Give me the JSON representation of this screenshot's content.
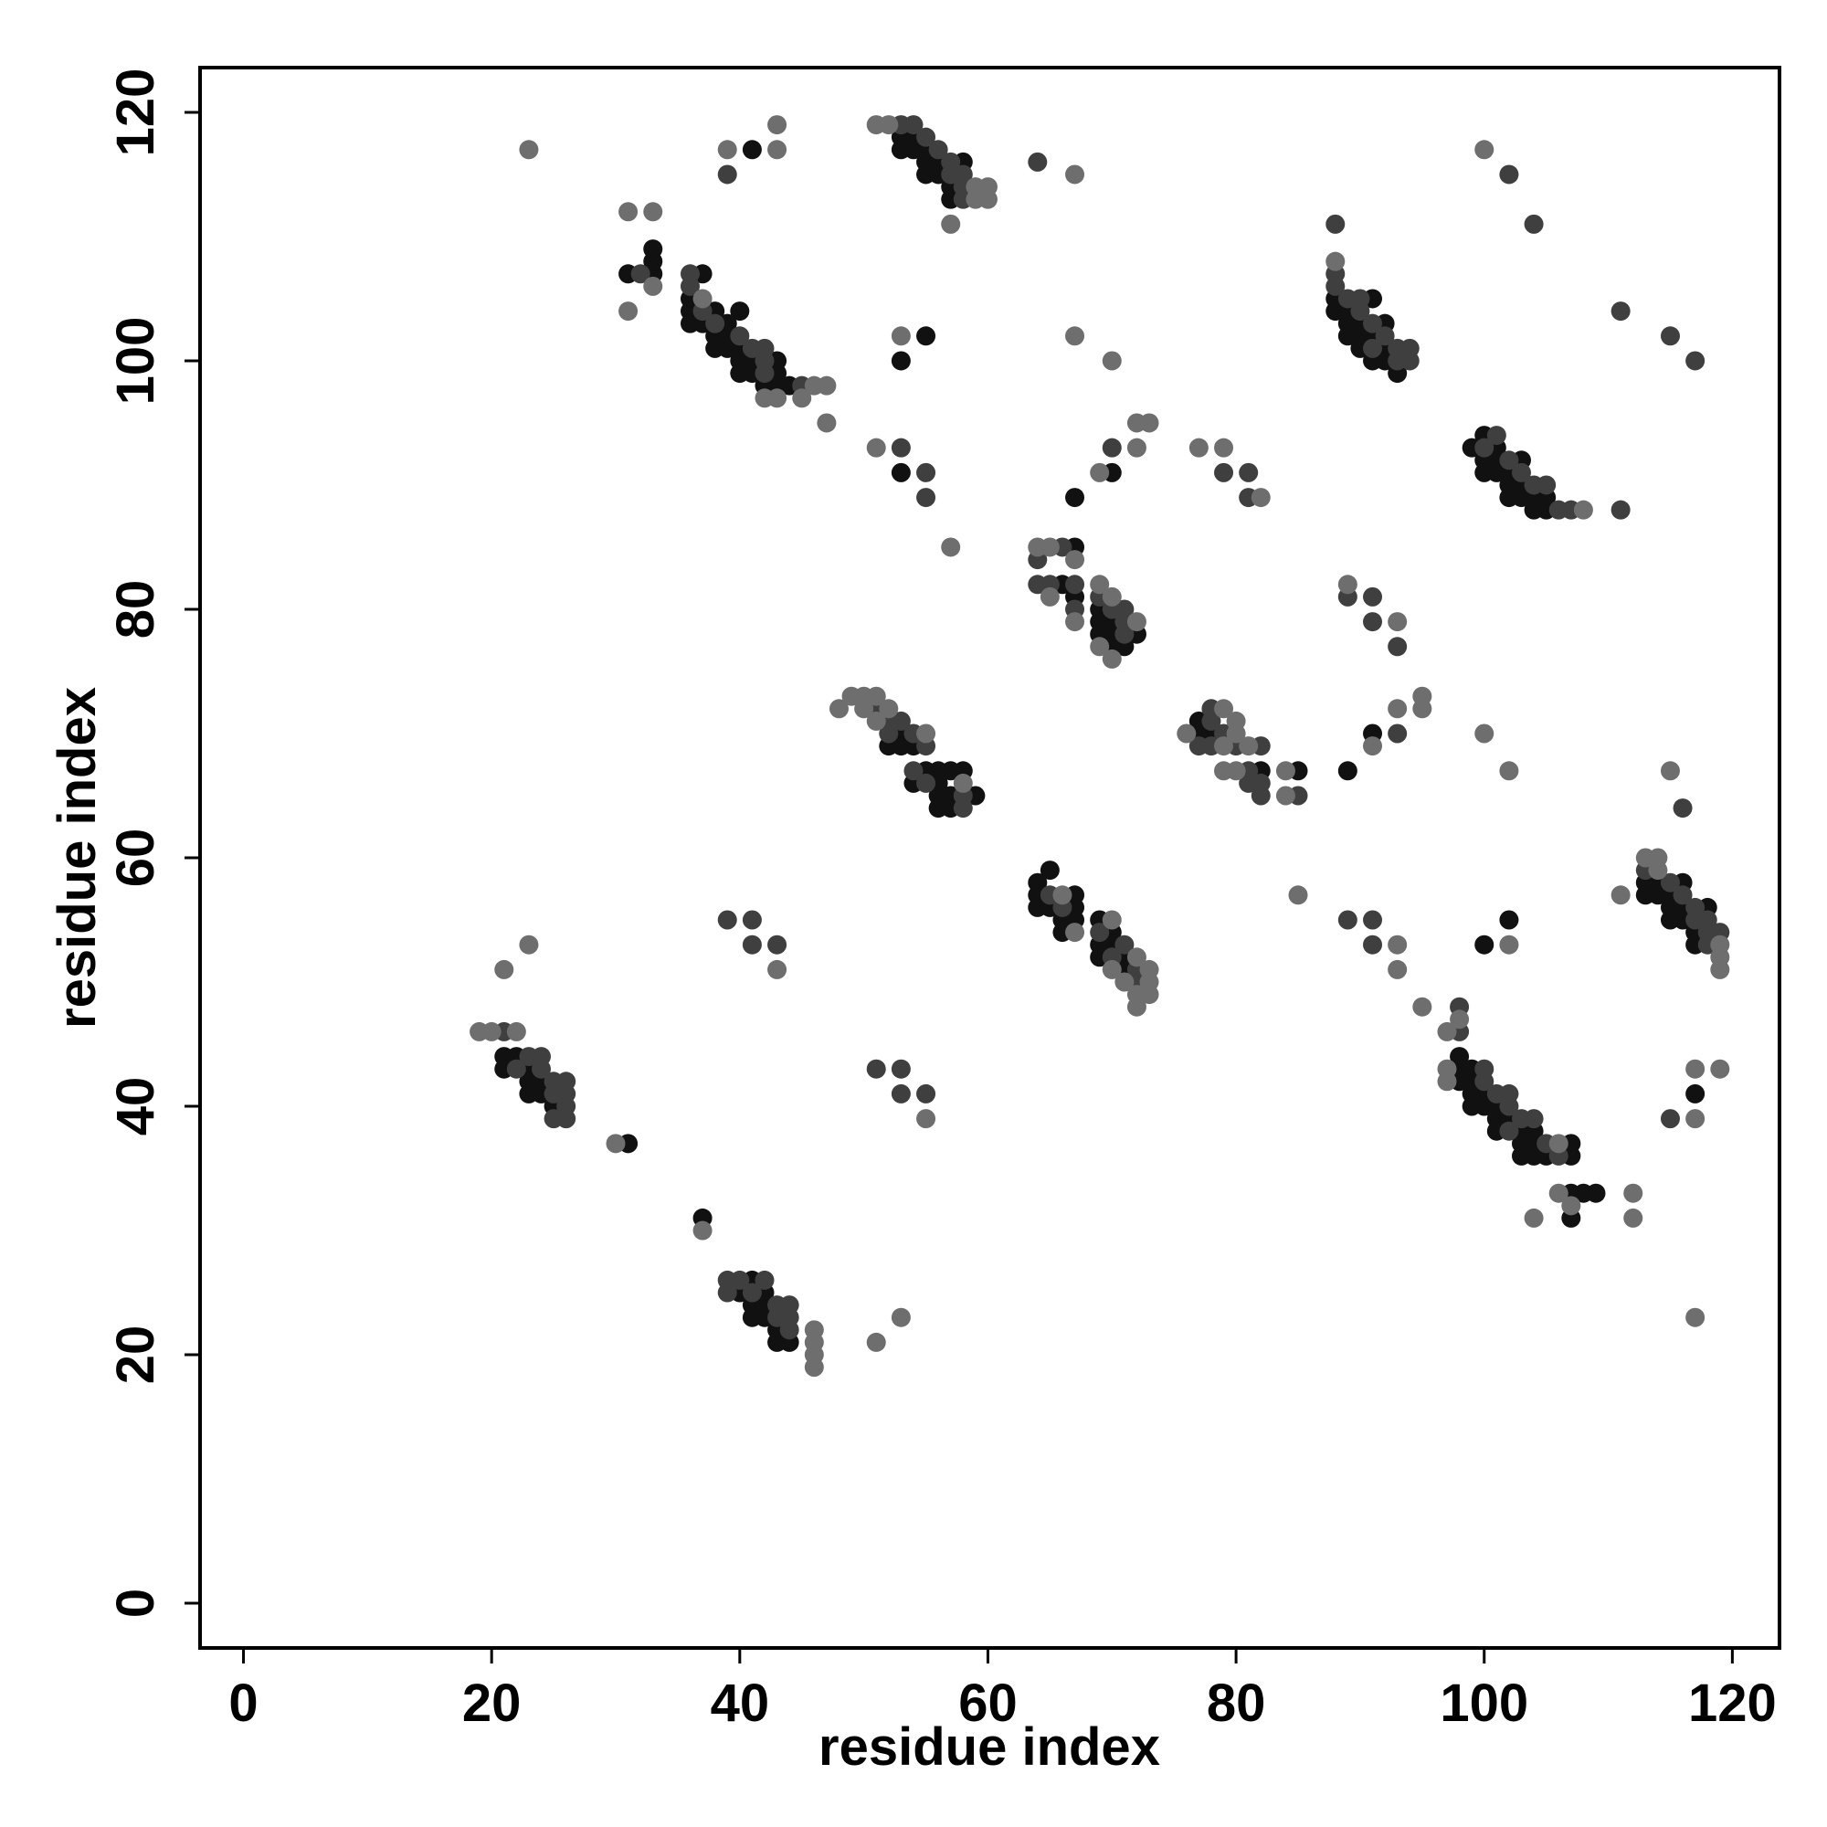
{
  "chart_data": {
    "type": "scatter",
    "x_label": "residue index",
    "y_label": "residue index",
    "xlim": [
      -3.5,
      123.8
    ],
    "ylim": [
      -3.6,
      123.6
    ],
    "xticks": [
      0,
      20,
      40,
      60,
      80,
      100,
      120
    ],
    "yticks": [
      0,
      20,
      40,
      60,
      80,
      100,
      120
    ],
    "series": [
      {
        "color": "#111111",
        "x": [
          53,
          54,
          53,
          54,
          55,
          55,
          56,
          58,
          55,
          56,
          57,
          57,
          41,
          31,
          33,
          33,
          33,
          37,
          36,
          36,
          38,
          36,
          37,
          39,
          40,
          38,
          39,
          38,
          39,
          40,
          40,
          41,
          43,
          40,
          41,
          43,
          42,
          43,
          44,
          55,
          53,
          53,
          67,
          70,
          88,
          91,
          88,
          89,
          89,
          90,
          92,
          89,
          90,
          91,
          90,
          92,
          91,
          92,
          93,
          99,
          100,
          101,
          100,
          101,
          103,
          100,
          101,
          102,
          102,
          103,
          102,
          103,
          104,
          105,
          104,
          105,
          67,
          66,
          67,
          69,
          69,
          70,
          69,
          70,
          72,
          70,
          71,
          91,
          89,
          53,
          52,
          53,
          54,
          55,
          56,
          57,
          58,
          54,
          56,
          56,
          57,
          59,
          56,
          57,
          77,
          77,
          78,
          82,
          85,
          64,
          65,
          64,
          67,
          64,
          65,
          67,
          66,
          67,
          66,
          69,
          70,
          69,
          70,
          69,
          71,
          71,
          100,
          102,
          113,
          114,
          116,
          113,
          114,
          115,
          115,
          116,
          118,
          115,
          116,
          117,
          117,
          21,
          22,
          21,
          23,
          23,
          24,
          23,
          24,
          25,
          31,
          98,
          98,
          99,
          98,
          99,
          99,
          100,
          99,
          100,
          101,
          101,
          102,
          101,
          103,
          104,
          103,
          104,
          107,
          103,
          104,
          105,
          107,
          107,
          108,
          109,
          107,
          117,
          37,
          41,
          40,
          42,
          41,
          42,
          41,
          42,
          43,
          43,
          44
        ],
        "values": [
          118,
          118,
          117,
          117,
          117,
          116,
          116,
          116,
          115,
          115,
          114,
          113,
          117,
          107,
          107,
          108,
          109,
          107,
          105,
          104,
          104,
          103,
          103,
          103,
          104,
          102,
          102,
          101,
          101,
          101,
          100,
          100,
          100,
          99,
          99,
          99,
          98,
          98,
          98,
          102,
          100,
          91,
          89,
          91,
          105,
          105,
          104,
          104,
          103,
          103,
          103,
          102,
          102,
          102,
          101,
          101,
          100,
          100,
          99,
          93,
          94,
          93,
          92,
          92,
          92,
          91,
          91,
          91,
          90,
          90,
          89,
          89,
          89,
          89,
          88,
          88,
          85,
          82,
          81,
          80,
          79,
          79,
          78,
          78,
          78,
          77,
          77,
          70,
          67,
          70,
          69,
          69,
          69,
          67,
          67,
          67,
          67,
          66,
          66,
          65,
          65,
          65,
          64,
          64,
          71,
          70,
          70,
          67,
          67,
          58,
          59,
          57,
          57,
          56,
          56,
          56,
          55,
          55,
          54,
          55,
          54,
          53,
          53,
          52,
          52,
          51,
          53,
          55,
          58,
          58,
          58,
          57,
          57,
          57,
          56,
          56,
          56,
          55,
          55,
          54,
          53,
          44,
          44,
          43,
          43,
          42,
          42,
          41,
          41,
          40,
          37,
          44,
          43,
          43,
          42,
          42,
          41,
          41,
          40,
          40,
          40,
          39,
          39,
          38,
          38,
          38,
          37,
          37,
          37,
          36,
          36,
          36,
          36,
          33,
          33,
          33,
          31,
          41,
          31,
          26,
          25,
          25,
          24,
          24,
          23,
          23,
          22,
          21,
          21
        ]
      },
      {
        "color": "#3f3f3f",
        "x": [
          53,
          54,
          55,
          56,
          57,
          57,
          58,
          58,
          58,
          39,
          64,
          102,
          104,
          88,
          32,
          36,
          36,
          37,
          38,
          40,
          41,
          42,
          42,
          42,
          45,
          53,
          55,
          55,
          70,
          79,
          81,
          81,
          111,
          115,
          117,
          88,
          88,
          89,
          90,
          90,
          91,
          92,
          91,
          93,
          94,
          93,
          94,
          101,
          100,
          102,
          103,
          104,
          105,
          106,
          107,
          111,
          66,
          64,
          64,
          65,
          67,
          67,
          69,
          70,
          71,
          71,
          71,
          89,
          91,
          91,
          93,
          93,
          116,
          51,
          52,
          53,
          52,
          54,
          55,
          54,
          55,
          58,
          58,
          78,
          78,
          79,
          77,
          78,
          80,
          82,
          81,
          81,
          82,
          82,
          85,
          65,
          66,
          69,
          71,
          70,
          72,
          72,
          39,
          41,
          41,
          43,
          89,
          91,
          91,
          51,
          53,
          53,
          55,
          113,
          115,
          116,
          117,
          117,
          118,
          118,
          119,
          118,
          21,
          23,
          24,
          22,
          24,
          25,
          26,
          25,
          26,
          26,
          25,
          26,
          98,
          98,
          100,
          100,
          101,
          102,
          102,
          103,
          104,
          102,
          105,
          106,
          115,
          39,
          40,
          42,
          39,
          41,
          43,
          44,
          43,
          44,
          44
        ],
        "values": [
          119,
          119,
          118,
          117,
          116,
          115,
          115,
          114,
          113,
          115,
          116,
          115,
          111,
          111,
          107,
          107,
          106,
          104,
          103,
          102,
          101,
          101,
          100,
          99,
          98,
          93,
          91,
          89,
          93,
          91,
          91,
          89,
          104,
          102,
          100,
          107,
          106,
          105,
          105,
          104,
          103,
          102,
          101,
          101,
          101,
          100,
          100,
          94,
          93,
          92,
          91,
          90,
          90,
          88,
          88,
          88,
          85,
          84,
          82,
          82,
          82,
          80,
          81,
          80,
          80,
          79,
          78,
          81,
          81,
          79,
          77,
          70,
          64,
          72,
          71,
          71,
          70,
          70,
          69,
          67,
          66,
          65,
          64,
          71,
          72,
          70,
          69,
          69,
          69,
          69,
          67,
          66,
          66,
          65,
          65,
          57,
          56,
          54,
          53,
          52,
          51,
          50,
          55,
          55,
          53,
          53,
          55,
          55,
          53,
          43,
          43,
          41,
          41,
          59,
          58,
          57,
          56,
          55,
          55,
          54,
          54,
          53,
          46,
          44,
          44,
          43,
          43,
          42,
          42,
          41,
          41,
          40,
          39,
          39,
          48,
          46,
          43,
          42,
          41,
          41,
          40,
          39,
          39,
          38,
          37,
          36,
          39,
          26,
          26,
          26,
          25,
          25,
          24,
          24,
          23,
          23,
          22
        ]
      },
      {
        "color": "#6e6e6e",
        "x": [
          51,
          52,
          59,
          60,
          59,
          60,
          57,
          23,
          39,
          43,
          43,
          67,
          100,
          31,
          33,
          31,
          33,
          37,
          42,
          43,
          46,
          47,
          45,
          47,
          53,
          67,
          70,
          51,
          57,
          69,
          72,
          72,
          73,
          77,
          79,
          82,
          88,
          108,
          64,
          65,
          67,
          65,
          67,
          69,
          70,
          72,
          69,
          70,
          89,
          93,
          95,
          95,
          93,
          91,
          100,
          102,
          115,
          111,
          85,
          48,
          49,
          50,
          51,
          50,
          52,
          51,
          55,
          58,
          76,
          80,
          79,
          80,
          79,
          81,
          79,
          80,
          84,
          84,
          66,
          67,
          70,
          72,
          70,
          73,
          71,
          73,
          72,
          73,
          72,
          43,
          23,
          21,
          93,
          93,
          102,
          55,
          95,
          113,
          114,
          114,
          119,
          119,
          119,
          19,
          20,
          22,
          30,
          97,
          98,
          97,
          97,
          106,
          106,
          107,
          112,
          112,
          104,
          117,
          119,
          117,
          117,
          37,
          46,
          46,
          46,
          46,
          51,
          53
        ],
        "values": [
          119,
          119,
          114,
          114,
          113,
          113,
          111,
          117,
          117,
          117,
          119,
          115,
          117,
          112,
          112,
          104,
          106,
          105,
          97,
          97,
          98,
          98,
          97,
          95,
          102,
          102,
          100,
          93,
          85,
          91,
          93,
          95,
          95,
          93,
          93,
          89,
          108,
          88,
          85,
          85,
          84,
          81,
          79,
          82,
          81,
          79,
          77,
          76,
          82,
          79,
          73,
          72,
          72,
          69,
          70,
          67,
          67,
          57,
          57,
          72,
          73,
          73,
          73,
          72,
          72,
          71,
          70,
          66,
          70,
          70,
          72,
          71,
          69,
          69,
          67,
          67,
          67,
          65,
          57,
          54,
          55,
          52,
          51,
          51,
          50,
          50,
          49,
          49,
          48,
          51,
          53,
          51,
          53,
          51,
          53,
          39,
          48,
          60,
          60,
          59,
          53,
          52,
          51,
          46,
          46,
          46,
          37,
          46,
          47,
          43,
          42,
          37,
          33,
          32,
          33,
          31,
          31,
          43,
          43,
          39,
          23,
          30,
          22,
          21,
          20,
          19,
          21,
          23
        ]
      }
    ]
  }
}
